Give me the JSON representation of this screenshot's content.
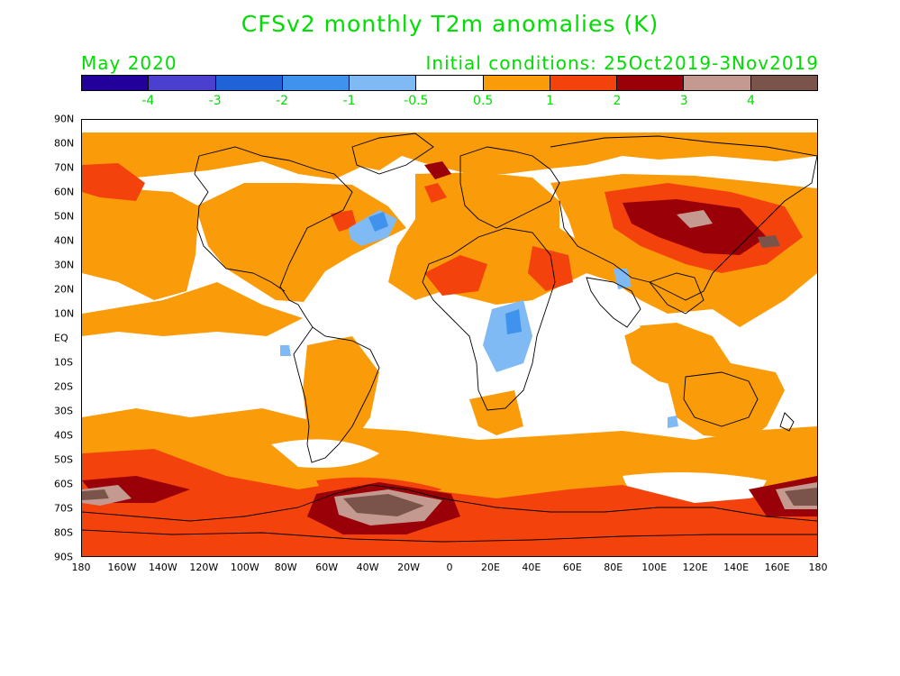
{
  "title": "CFSv2 monthly T2m anomalies (K)",
  "valid_month": "May 2020",
  "initial_conditions": "Initial conditions: 25Oct2019-3Nov2019",
  "colorbar": {
    "colors": [
      "#22009a",
      "#4b3fd0",
      "#1f63d6",
      "#3f93ec",
      "#7fbaf5",
      "#ffffff",
      "#fa9c0a",
      "#f4420c",
      "#9a0008",
      "#c49a90",
      "#7a544a"
    ],
    "labels": [
      "-4",
      "-3",
      "-2",
      "-1",
      "-0.5",
      "0.5",
      "1",
      "2",
      "3",
      "4"
    ]
  },
  "lat_labels": [
    "90N",
    "80N",
    "70N",
    "60N",
    "50N",
    "40N",
    "30N",
    "20N",
    "10N",
    "EQ",
    "10S",
    "20S",
    "30S",
    "40S",
    "50S",
    "60S",
    "70S",
    "80S",
    "90S"
  ],
  "lon_labels": [
    "180",
    "160W",
    "140W",
    "120W",
    "100W",
    "80W",
    "60W",
    "40W",
    "20W",
    "0",
    "20E",
    "40E",
    "60E",
    "80E",
    "100E",
    "120E",
    "140E",
    "160E",
    "180"
  ]
}
